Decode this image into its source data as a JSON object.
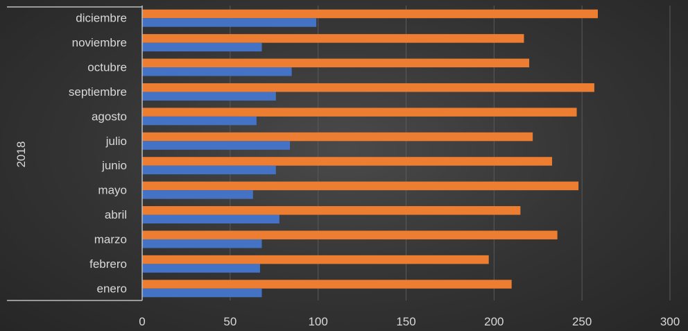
{
  "chart_data": {
    "type": "bar",
    "orientation": "horizontal",
    "group_label": "2018",
    "categories": [
      "enero",
      "febrero",
      "marzo",
      "abril",
      "mayo",
      "junio",
      "julio",
      "agosto",
      "septiembre",
      "octubre",
      "noviembre",
      "diciembre"
    ],
    "series": [
      {
        "values": [
          68,
          67,
          68,
          78,
          63,
          76,
          84,
          65,
          76,
          85,
          68,
          99
        ],
        "color": "#4472C4"
      },
      {
        "values": [
          210,
          197,
          236,
          215,
          248,
          233,
          222,
          247,
          257,
          220,
          217,
          259
        ],
        "color": "#ED7D31"
      }
    ],
    "xlim": [
      0,
      300
    ],
    "xticks": [
      "0",
      "50",
      "100",
      "150",
      "200",
      "250",
      "300"
    ],
    "grid": true,
    "legend": "none"
  }
}
